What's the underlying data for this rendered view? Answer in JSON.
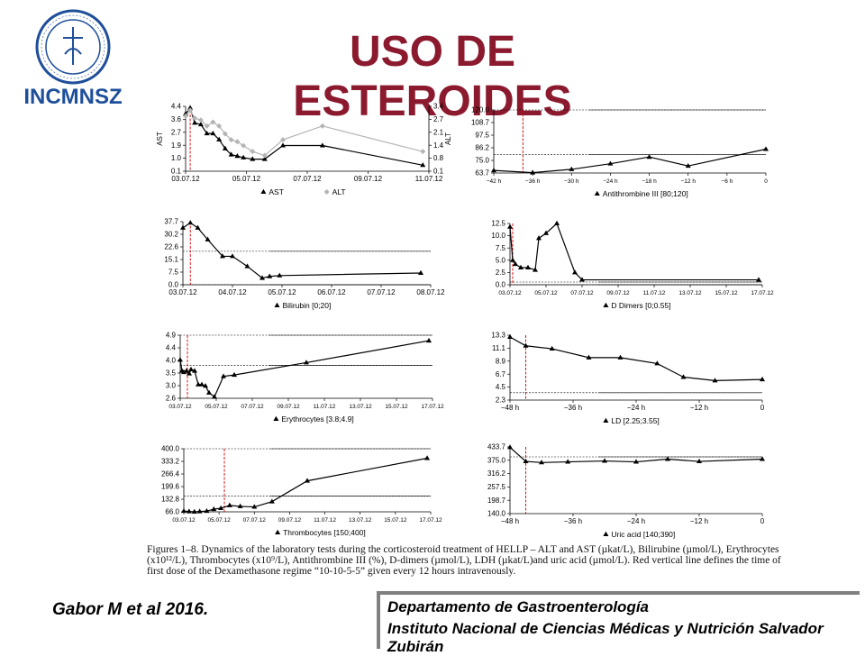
{
  "slide": {
    "title": "USO DE ESTEROIDES",
    "logo_text": "INCMNSZ",
    "reference": "Gabor M et al 2016.",
    "department": "Departamento de Gastroenterología",
    "institute": "Instituto Nacional de Ciencias Médicas y Nutrición Salvador Zubirán",
    "caption": "Figures 1–8. Dynamics of the laboratory tests during the corticosteroid treatment of HELLP – ALT and AST (µkat/L), Bilirubine (µmol/L), Erythrocytes (x10¹²/L), Thrombocytes (x10⁹/L), Antithrombine III (%), D-dimers (µmol/L), LDH (µkat/L)and uric acid (µmol/L). Red vertical line defines the time of first dose of the Dexamethasone regime “10-10-5-5” given every 12 hours intravenously."
  },
  "colors": {
    "title": "#8b1a2e",
    "logo": "#1f4f9a",
    "line": "#000000",
    "alt_line": "#b4b4b4",
    "red_marker": "#d40000"
  },
  "chart_data": [
    {
      "type": "line",
      "id": "ast-alt",
      "x_ticks": [
        "03.07.12",
        "05.07.12",
        "07.07.12",
        "09.07.12",
        "11.07.12"
      ],
      "x_range": [
        0,
        8
      ],
      "left_axis": {
        "label": "AST",
        "ticks": [
          "4.4",
          "3.6",
          "2.7",
          "1.9",
          "1.0",
          "0.1"
        ],
        "range": [
          0.1,
          4.4
        ]
      },
      "right_axis": {
        "label": "ALT",
        "ticks": [
          "3.4",
          "2.7",
          "2.1",
          "1.4",
          "0.8",
          "0.1"
        ],
        "range": [
          0.1,
          3.4
        ]
      },
      "red_line_x": 0.15,
      "series": [
        {
          "name": "AST",
          "marker": "triangle",
          "axis": "left",
          "x": [
            0,
            0.15,
            0.3,
            0.5,
            0.7,
            0.9,
            1.1,
            1.3,
            1.5,
            1.7,
            1.9,
            2.2,
            2.6,
            3.2,
            4.5,
            7.8
          ],
          "y": [
            3.9,
            4.3,
            3.3,
            3.2,
            2.6,
            2.6,
            2.2,
            1.6,
            1.2,
            1.1,
            1.0,
            0.9,
            0.9,
            1.8,
            1.8,
            0.5
          ]
        },
        {
          "name": "ALT",
          "marker": "diamond",
          "axis": "right",
          "x": [
            0,
            0.15,
            0.3,
            0.5,
            0.7,
            0.9,
            1.1,
            1.3,
            1.5,
            1.7,
            1.9,
            2.2,
            2.6,
            3.2,
            4.5,
            7.8
          ],
          "y": [
            2.9,
            3.2,
            2.8,
            2.7,
            2.4,
            2.6,
            2.4,
            2.0,
            1.7,
            1.6,
            1.4,
            1.1,
            0.9,
            1.7,
            2.4,
            1.1
          ]
        }
      ]
    },
    {
      "type": "line",
      "id": "antithrombin",
      "x_ticks": [
        "−42 h",
        "−36 h",
        "−30 h",
        "−24 h",
        "−18 h",
        "−12 h",
        "−6 h",
        "0"
      ],
      "x_range": [
        -42,
        0
      ],
      "y_ticks": [
        "120.0",
        "108.7",
        "97.5",
        "86.2",
        "75.0",
        "63.7"
      ],
      "y_range": [
        63.7,
        120.0
      ],
      "ref_lines": [
        120,
        80
      ],
      "red_line_x": -37.5,
      "series": [
        {
          "name": "Antithrombine III [80;120]",
          "marker": "triangle",
          "x": [
            -42,
            -36,
            -30,
            -24,
            -18,
            -12,
            0
          ],
          "y": [
            66,
            64,
            67,
            72,
            78,
            70,
            85
          ]
        }
      ]
    },
    {
      "type": "line",
      "id": "bilirubin",
      "x_ticks": [
        "03.07.12",
        "04.07.12",
        "05.07.12",
        "06.07.12",
        "07.07.12",
        "08.07.12"
      ],
      "x_range": [
        0,
        5
      ],
      "y_ticks": [
        "37.7",
        "30.2",
        "22.6",
        "15.1",
        "7.5",
        "0.0"
      ],
      "y_range": [
        0.0,
        37.7
      ],
      "ref_lines": [
        20,
        0
      ],
      "red_line_x": 0.15,
      "series": [
        {
          "name": "Bilirubin [0;20]",
          "marker": "triangle",
          "x": [
            0,
            0.15,
            0.3,
            0.5,
            0.8,
            1.0,
            1.3,
            1.6,
            1.75,
            1.95,
            4.8
          ],
          "y": [
            34,
            37,
            34,
            27,
            17,
            17,
            11,
            4,
            5,
            5.5,
            7
          ]
        }
      ]
    },
    {
      "type": "line",
      "id": "d-dimers",
      "x_ticks": [
        "03.07.12",
        "05.07.12",
        "07.07.12",
        "09.07.12",
        "11.07.12",
        "13.07.12",
        "15.07.12",
        "17.07.12"
      ],
      "x_range": [
        0,
        14
      ],
      "y_ticks": [
        "12.5",
        "10.0",
        "7.5",
        "5.0",
        "2.5",
        "0.0"
      ],
      "y_range": [
        0.0,
        12.5
      ],
      "ref_lines": [
        0.55,
        0
      ],
      "red_line_x": 0.15,
      "series": [
        {
          "name": "D Dimers [0;0.55]",
          "marker": "triangle",
          "x": [
            0,
            0.15,
            0.3,
            0.6,
            1.0,
            1.4,
            1.6,
            2.0,
            2.6,
            3.6,
            4.0,
            13.8
          ],
          "y": [
            11.8,
            5.0,
            4.2,
            3.5,
            3.5,
            3.0,
            9.5,
            10.5,
            12.5,
            2.5,
            1.0,
            1.0
          ]
        }
      ]
    },
    {
      "type": "line",
      "id": "erythrocytes",
      "x_ticks": [
        "03.07.12",
        "05.07.12",
        "07.07.12",
        "09.07.12",
        "11.07.12",
        "13.07.12",
        "15.07.12",
        "17.07.12"
      ],
      "x_range": [
        0,
        14
      ],
      "y_ticks": [
        "4.9",
        "4.4",
        "4.0",
        "3.5",
        "3.0",
        "2.6"
      ],
      "y_range": [
        2.6,
        4.9
      ],
      "ref_lines": [
        4.9,
        3.8
      ],
      "red_line_x": 0.4,
      "series": [
        {
          "name": "Erythrocytes [3.8;4.9]",
          "marker": "triangle",
          "x": [
            0,
            0.1,
            0.2,
            0.35,
            0.5,
            0.6,
            0.8,
            1.0,
            1.2,
            1.4,
            1.6,
            1.9,
            2.4,
            3.0,
            7.0,
            13.8
          ],
          "y": [
            4.0,
            3.6,
            3.55,
            3.6,
            3.5,
            3.65,
            3.6,
            3.1,
            3.1,
            3.05,
            2.8,
            2.65,
            3.4,
            3.45,
            3.9,
            4.7
          ]
        }
      ]
    },
    {
      "type": "line",
      "id": "ld",
      "x_ticks": [
        "−48 h",
        "−36 h",
        "−24 h",
        "−12 h",
        "0"
      ],
      "x_range": [
        -48,
        0
      ],
      "y_ticks": [
        "13.3",
        "11.1",
        "8.9",
        "6.7",
        "4.5",
        "2.3"
      ],
      "y_range": [
        2.3,
        13.3
      ],
      "ref_lines": [
        3.55
      ],
      "red_line_x": -45,
      "series": [
        {
          "name": "LD [2.25;3.55]",
          "marker": "triangle",
          "x": [
            -48,
            -45,
            -40,
            -33,
            -27,
            -20,
            -15,
            -9,
            0
          ],
          "y": [
            13.0,
            11.5,
            11.0,
            9.5,
            9.5,
            8.5,
            6.2,
            5.6,
            5.8
          ]
        }
      ]
    },
    {
      "type": "line",
      "id": "thrombocytes",
      "x_ticks": [
        "03.07.12",
        "05.07.12",
        "07.07.12",
        "09.07.12",
        "11.07.12",
        "13.07.12",
        "15.07.12",
        "17.07.12"
      ],
      "x_range": [
        0,
        14
      ],
      "y_ticks": [
        "400.0",
        "333.2",
        "266.4",
        "199.6",
        "132.8",
        "66.0"
      ],
      "y_range": [
        66.0,
        400.0
      ],
      "ref_lines": [
        400,
        150
      ],
      "red_line_x": 2.3,
      "series": [
        {
          "name": "Thrombocytes [150;400]",
          "marker": "triangle",
          "x": [
            0,
            0.3,
            0.6,
            0.9,
            1.3,
            1.7,
            2.1,
            2.6,
            3.2,
            4.0,
            5.0,
            7.0,
            13.8
          ],
          "y": [
            70,
            68,
            66,
            68,
            70,
            80,
            85,
            100,
            95,
            92,
            120,
            230,
            350
          ]
        }
      ]
    },
    {
      "type": "line",
      "id": "uric-acid",
      "x_ticks": [
        "−48 h",
        "−36 h",
        "−24 h",
        "−12 h",
        "0"
      ],
      "x_range": [
        -48,
        0
      ],
      "y_ticks": [
        "433.7",
        "375.0",
        "316.2",
        "257.5",
        "198.7",
        "140.0"
      ],
      "y_range": [
        140.0,
        433.7
      ],
      "ref_lines": [
        390
      ],
      "red_line_x": -45,
      "series": [
        {
          "name": "Uric acid [140;390]",
          "marker": "triangle",
          "x": [
            -48,
            -45,
            -42,
            -37,
            -30,
            -24,
            -18,
            -12,
            0
          ],
          "y": [
            432,
            370,
            365,
            368,
            372,
            368,
            380,
            370,
            380
          ]
        }
      ]
    }
  ]
}
